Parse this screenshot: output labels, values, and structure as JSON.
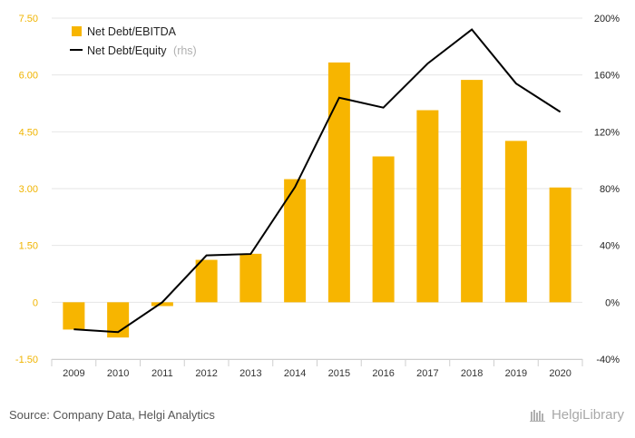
{
  "chart_data": {
    "type": "bar",
    "categories": [
      "2009",
      "2010",
      "2011",
      "2012",
      "2013",
      "2014",
      "2015",
      "2016",
      "2017",
      "2018",
      "2019",
      "2020"
    ],
    "series": [
      {
        "name": "Net Debt/EBITDA",
        "type": "bar",
        "axis": "left",
        "color": "#f7b500",
        "values": [
          -0.72,
          -0.93,
          -0.1,
          1.12,
          1.28,
          3.25,
          6.33,
          3.85,
          5.07,
          5.87,
          4.26,
          3.03
        ]
      },
      {
        "name": "Net Debt/Equity",
        "name_suffix": "(rhs)",
        "type": "line",
        "axis": "right",
        "color": "#000000",
        "values": [
          -19,
          -21,
          0,
          33,
          34,
          81,
          144,
          137,
          168,
          192,
          154,
          134
        ]
      }
    ],
    "y_left": {
      "ylim": [
        -1.5,
        7.5
      ],
      "ticks": [
        "-1.50",
        "0",
        "1.50",
        "3.00",
        "4.50",
        "6.00",
        "7.50"
      ],
      "tick_values": [
        -1.5,
        0,
        1.5,
        3,
        4.5,
        6,
        7.5
      ]
    },
    "y_right": {
      "ylim": [
        -40,
        200
      ],
      "ticks": [
        "-40%",
        "0%",
        "40%",
        "80%",
        "120%",
        "160%",
        "200%"
      ],
      "tick_values": [
        -40,
        0,
        40,
        80,
        120,
        160,
        200
      ]
    },
    "grid": true,
    "legend_position": "top-left"
  },
  "footer": {
    "source": "Source: Company Data, Helgi Analytics",
    "logo": "HelgiLibrary"
  }
}
